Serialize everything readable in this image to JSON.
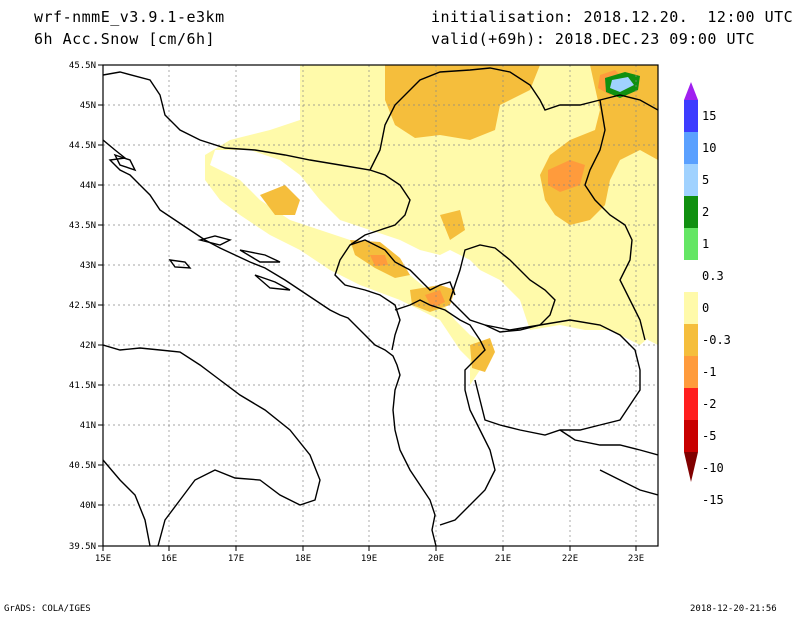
{
  "header": {
    "model": "wrf-nmmE_v3.9.1-e3km",
    "field": "6h Acc.Snow [cm/6h]",
    "init": "initialisation: 2018.12.20.  12:00 UTC",
    "valid": "valid(+69h): 2018.DEC.23 09:00 UTC"
  },
  "footer": {
    "left": "GrADS: COLA/IGES",
    "right": "2018-12-20-21:56"
  },
  "map": {
    "lat_labels": [
      "45.5N",
      "45N",
      "44.5N",
      "44N",
      "43.5N",
      "43N",
      "42.5N",
      "42N",
      "41.5N",
      "41N",
      "40.5N",
      "40N",
      "39.5N"
    ],
    "lon_labels": [
      "15E",
      "16E",
      "17E",
      "18E",
      "19E",
      "20E",
      "21E",
      "22E",
      "23E"
    ]
  },
  "colorbar": {
    "labels": [
      "15",
      "10",
      "5",
      "2",
      "1",
      "0.3",
      "0",
      "-0.3",
      "-1",
      "-2",
      "-5",
      "-10",
      "-15"
    ],
    "colors": [
      "#a020f0",
      "#3c3cff",
      "#5aa0ff",
      "#a0d2ff",
      "#109010",
      "#64e664",
      "#ffffff",
      "#fffaaa",
      "#f5be3c",
      "#ff9b3c",
      "#ff1e1e",
      "#c80000",
      "#800000"
    ]
  },
  "colors": {
    "snow_light": "#fffaaa",
    "snow_1": "#f5be3c",
    "snow_2": "#ff9b3c",
    "snow_5": "#ff1e1e",
    "snow_10_green": "#109010",
    "snow_light_blue": "#a0d2ff"
  }
}
